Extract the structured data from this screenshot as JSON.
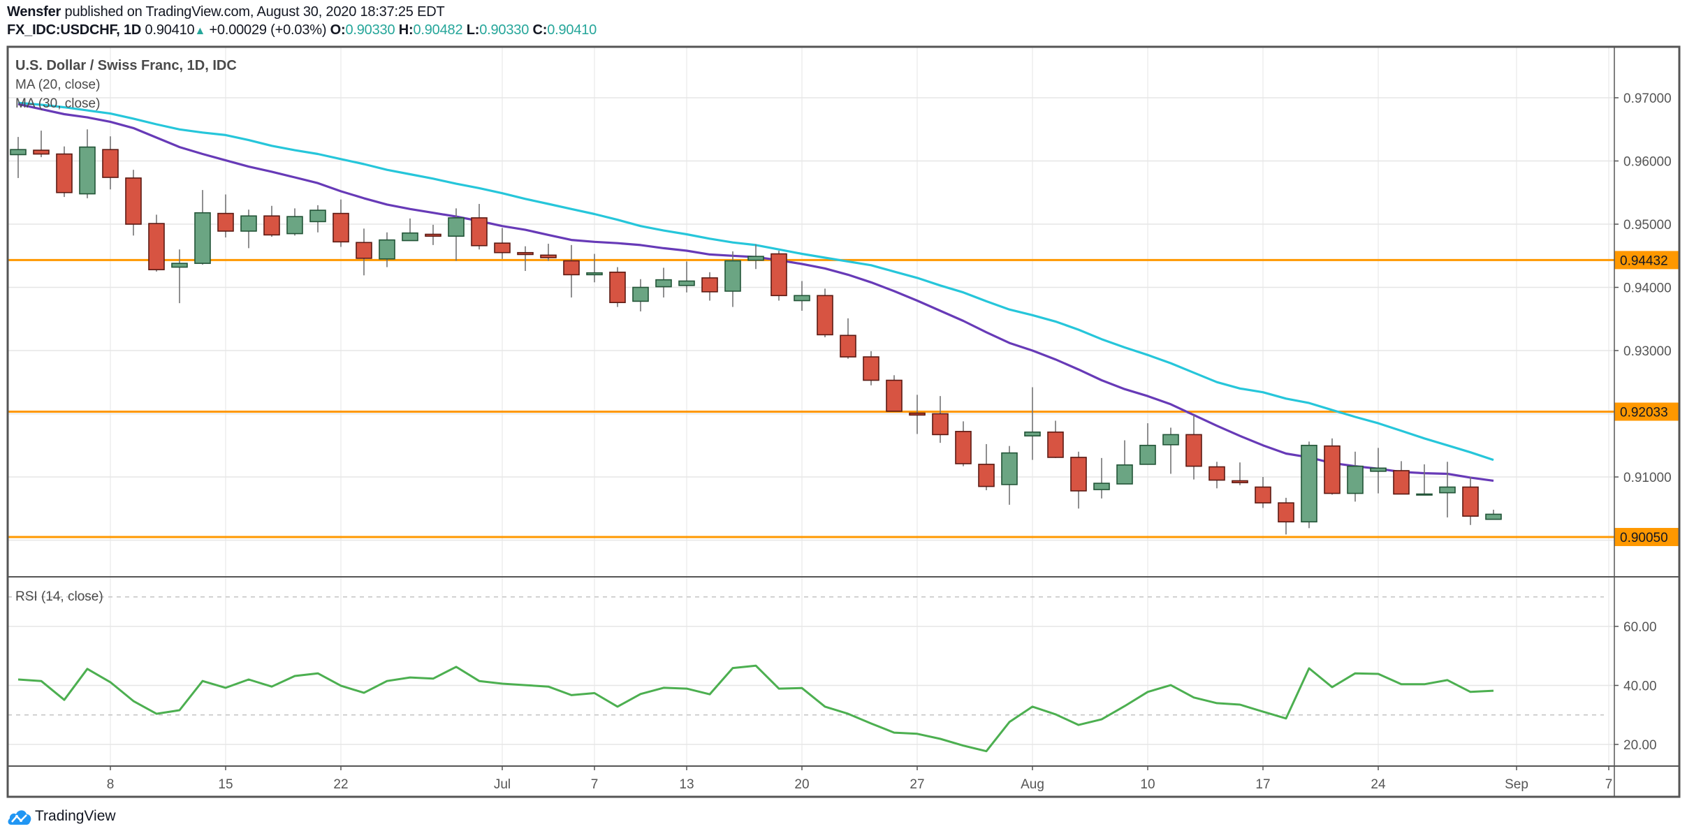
{
  "header": {
    "author": "Wensfer",
    "published_text": "published on TradingView.com, August 30, 2020 18:37:25 EDT",
    "symbol": "FX_IDC:USDCHF, 1D",
    "last_price": "0.90410",
    "change_direction_icon": "triangle-up-icon",
    "change": "+0.00029 (+0.03%)",
    "ohlc": [
      {
        "label": "O:",
        "value": "0.90330"
      },
      {
        "label": "H:",
        "value": "0.90482"
      },
      {
        "label": "L:",
        "value": "0.90330"
      },
      {
        "label": "C:",
        "value": "0.90410"
      }
    ]
  },
  "legend": {
    "title": "U.S. Dollar / Swiss Franc, 1D, IDC",
    "ma20": "MA (20, close)",
    "ma30": "MA (30, close)",
    "rsi": "RSI (14, close)"
  },
  "colors": {
    "candle_up": "#6ba583",
    "candle_up_border": "#225437",
    "candle_down": "#d75442",
    "candle_down_border": "#5b1a13",
    "wick": "#737375",
    "ma20": "#673ab7",
    "ma30": "#26c6da",
    "level_line": "#ff9800",
    "rsi": "#4caf50",
    "teal_text": "#26a69a"
  },
  "branding": {
    "logo_text": "TradingView",
    "logo_icon": "tradingview-cloud-icon"
  },
  "chart_data": [
    {
      "type": "candlestick",
      "title": "U.S. Dollar / Swiss Franc, 1D, IDC",
      "price_ylim": [
        0.8968,
        0.9781
      ],
      "yticks": [
        "0.90000",
        "0.91000",
        "0.92000",
        "0.93000",
        "0.94000",
        "0.95000",
        "0.96000",
        "0.97000"
      ],
      "ytick_values": [
        0.9,
        0.91,
        0.92,
        0.93,
        0.94,
        0.95,
        0.96,
        0.97
      ],
      "visible_yticks": [
        "0.91000",
        "0.93000",
        "0.94000",
        "0.95000",
        "0.96000",
        "0.97000"
      ],
      "x_tick_labels": [
        {
          "label": "8",
          "bar": 5
        },
        {
          "label": "15",
          "bar": 10
        },
        {
          "label": "22",
          "bar": 15
        },
        {
          "label": "Jul",
          "bar": 22
        },
        {
          "label": "7",
          "bar": 26
        },
        {
          "label": "13",
          "bar": 30
        },
        {
          "label": "20",
          "bar": 35
        },
        {
          "label": "27",
          "bar": 40
        },
        {
          "label": "Aug",
          "bar": 45
        },
        {
          "label": "10",
          "bar": 50
        },
        {
          "label": "17",
          "bar": 55
        },
        {
          "label": "24",
          "bar": 60
        },
        {
          "label": "Sep",
          "bar": 66
        },
        {
          "label": "7",
          "bar": 70
        }
      ],
      "date_range": [
        "2020-06-02",
        "2020-08-31"
      ],
      "horizontal_levels": [
        {
          "value": 0.94432,
          "label": "0.94432"
        },
        {
          "value": 0.92033,
          "label": "0.92033"
        },
        {
          "value": 0.9005,
          "label": "0.90050"
        }
      ],
      "ohlc": [
        [
          0.961,
          0.9638,
          0.9573,
          0.9618
        ],
        [
          0.9617,
          0.9648,
          0.9606,
          0.9611
        ],
        [
          0.9611,
          0.9623,
          0.9543,
          0.955
        ],
        [
          0.9548,
          0.965,
          0.9541,
          0.9622
        ],
        [
          0.9618,
          0.9639,
          0.9555,
          0.9574
        ],
        [
          0.9573,
          0.9586,
          0.9482,
          0.95
        ],
        [
          0.9501,
          0.9515,
          0.9425,
          0.9428
        ],
        [
          0.9432,
          0.946,
          0.9375,
          0.9438
        ],
        [
          0.9438,
          0.9554,
          0.9436,
          0.9518
        ],
        [
          0.9517,
          0.9547,
          0.9479,
          0.9489
        ],
        [
          0.9489,
          0.9523,
          0.9462,
          0.9513
        ],
        [
          0.9513,
          0.9529,
          0.948,
          0.9483
        ],
        [
          0.9485,
          0.9525,
          0.9482,
          0.9512
        ],
        [
          0.9504,
          0.953,
          0.9487,
          0.9522
        ],
        [
          0.9517,
          0.9539,
          0.9464,
          0.9472
        ],
        [
          0.9471,
          0.9493,
          0.9419,
          0.9446
        ],
        [
          0.9445,
          0.9487,
          0.9432,
          0.9475
        ],
        [
          0.9474,
          0.9509,
          0.9474,
          0.9486
        ],
        [
          0.9484,
          0.9499,
          0.9467,
          0.9481
        ],
        [
          0.9481,
          0.9525,
          0.9442,
          0.951
        ],
        [
          0.951,
          0.9532,
          0.946,
          0.9466
        ],
        [
          0.947,
          0.9494,
          0.9445,
          0.9455
        ],
        [
          0.9455,
          0.9465,
          0.9426,
          0.9452
        ],
        [
          0.9451,
          0.9469,
          0.9442,
          0.9447
        ],
        [
          0.9442,
          0.9467,
          0.9384,
          0.942
        ],
        [
          0.942,
          0.9453,
          0.9408,
          0.9423
        ],
        [
          0.9424,
          0.9432,
          0.9369,
          0.9376
        ],
        [
          0.9378,
          0.9413,
          0.9362,
          0.94
        ],
        [
          0.9401,
          0.9431,
          0.9384,
          0.9412
        ],
        [
          0.9403,
          0.9441,
          0.9392,
          0.941
        ],
        [
          0.9415,
          0.9424,
          0.9379,
          0.9393
        ],
        [
          0.9394,
          0.9457,
          0.9369,
          0.9442
        ],
        [
          0.9443,
          0.9468,
          0.9429,
          0.9449
        ],
        [
          0.9453,
          0.9458,
          0.9379,
          0.9387
        ],
        [
          0.9379,
          0.941,
          0.9363,
          0.9387
        ],
        [
          0.9387,
          0.9398,
          0.9321,
          0.9325
        ],
        [
          0.9324,
          0.9351,
          0.9287,
          0.929
        ],
        [
          0.929,
          0.9299,
          0.9245,
          0.9253
        ],
        [
          0.9253,
          0.9261,
          0.9204,
          0.9204
        ],
        [
          0.9201,
          0.923,
          0.9168,
          0.9198
        ],
        [
          0.92,
          0.9228,
          0.9154,
          0.9167
        ],
        [
          0.9172,
          0.9188,
          0.9117,
          0.9121
        ],
        [
          0.912,
          0.9152,
          0.9079,
          0.9085
        ],
        [
          0.9088,
          0.9149,
          0.9056,
          0.9138
        ],
        [
          0.9165,
          0.9242,
          0.9127,
          0.9171
        ],
        [
          0.9171,
          0.9189,
          0.913,
          0.9131
        ],
        [
          0.9131,
          0.914,
          0.905,
          0.9078
        ],
        [
          0.908,
          0.913,
          0.9066,
          0.909
        ],
        [
          0.9089,
          0.9158,
          0.9089,
          0.9119
        ],
        [
          0.912,
          0.9185,
          0.912,
          0.915
        ],
        [
          0.9151,
          0.9178,
          0.9105,
          0.9167
        ],
        [
          0.9167,
          0.9198,
          0.9096,
          0.9117
        ],
        [
          0.9116,
          0.9124,
          0.9082,
          0.9095
        ],
        [
          0.9094,
          0.9123,
          0.9087,
          0.9091
        ],
        [
          0.9084,
          0.91,
          0.9051,
          0.9059
        ],
        [
          0.9059,
          0.9067,
          0.9009,
          0.9029
        ],
        [
          0.9029,
          0.9156,
          0.9019,
          0.915
        ],
        [
          0.9149,
          0.9161,
          0.9072,
          0.9074
        ],
        [
          0.9074,
          0.914,
          0.9061,
          0.9117
        ],
        [
          0.9109,
          0.9146,
          0.9074,
          0.9114
        ],
        [
          0.911,
          0.9125,
          0.9073,
          0.9073
        ],
        [
          0.9073,
          0.912,
          0.9073,
          0.9073
        ],
        [
          0.9075,
          0.9124,
          0.9036,
          0.9084
        ],
        [
          0.9084,
          0.91,
          0.9024,
          0.9038
        ],
        [
          0.9033,
          0.90482,
          0.9033,
          0.9041
        ]
      ],
      "series": [
        {
          "name": "MA (20, close)",
          "values": [
            0.969,
            0.9682,
            0.9674,
            0.9669,
            0.9662,
            0.9652,
            0.9637,
            0.9622,
            0.9611,
            0.9601,
            0.9591,
            0.9583,
            0.9574,
            0.9565,
            0.9552,
            0.9541,
            0.9531,
            0.9524,
            0.9518,
            0.9512,
            0.9505,
            0.9497,
            0.9491,
            0.9483,
            0.9475,
            0.9472,
            0.947,
            0.9467,
            0.9462,
            0.9458,
            0.9452,
            0.945,
            0.9448,
            0.9443,
            0.9437,
            0.943,
            0.942,
            0.9408,
            0.9394,
            0.9379,
            0.9363,
            0.9347,
            0.9329,
            0.9312,
            0.93,
            0.9286,
            0.927,
            0.9253,
            0.9239,
            0.9228,
            0.9215,
            0.9198,
            0.9181,
            0.9165,
            0.915,
            0.9137,
            0.9131,
            0.9122,
            0.9117,
            0.9113,
            0.9108,
            0.9106,
            0.9105,
            0.9099,
            0.9094
          ]
        },
        {
          "name": "MA (30, close)",
          "values": [
            0.9692,
            0.9689,
            0.9685,
            0.968,
            0.9675,
            0.9667,
            0.9658,
            0.965,
            0.9645,
            0.9641,
            0.9633,
            0.9624,
            0.9617,
            0.9611,
            0.9603,
            0.9595,
            0.9586,
            0.9579,
            0.9572,
            0.9564,
            0.9557,
            0.9549,
            0.954,
            0.9532,
            0.9524,
            0.9516,
            0.9507,
            0.9497,
            0.949,
            0.9484,
            0.9477,
            0.9471,
            0.9467,
            0.946,
            0.9453,
            0.9447,
            0.9441,
            0.9435,
            0.9425,
            0.9415,
            0.9403,
            0.9392,
            0.9378,
            0.9365,
            0.9356,
            0.9346,
            0.9333,
            0.9318,
            0.9305,
            0.9293,
            0.928,
            0.9265,
            0.925,
            0.924,
            0.9234,
            0.9224,
            0.9217,
            0.9206,
            0.9195,
            0.9185,
            0.9173,
            0.9161,
            0.915,
            0.9139,
            0.9127
          ]
        }
      ]
    },
    {
      "type": "line",
      "title": "RSI (14, close)",
      "ylim": [
        10,
        77
      ],
      "yticks": [
        "20.00",
        "40.00",
        "60.00"
      ],
      "ytick_values": [
        20,
        40,
        60
      ],
      "bands": [
        30,
        70
      ],
      "series": [
        {
          "name": "RSI (14, close)",
          "values": [
            42.0,
            41.5,
            35.1,
            45.6,
            41.1,
            34.7,
            30.4,
            31.6,
            41.5,
            39.2,
            42.0,
            39.6,
            43.2,
            44.1,
            39.9,
            37.5,
            41.5,
            42.7,
            42.3,
            46.3,
            41.5,
            40.6,
            40.1,
            39.6,
            36.7,
            37.4,
            32.8,
            37.1,
            39.2,
            38.9,
            37.0,
            45.9,
            46.7,
            38.9,
            39.1,
            32.8,
            30.4,
            27.1,
            24.0,
            23.6,
            21.9,
            19.6,
            17.7,
            27.6,
            32.8,
            30.2,
            26.6,
            28.5,
            33.0,
            37.8,
            40.1,
            35.9,
            34.0,
            33.5,
            31.1,
            28.8,
            45.8,
            39.4,
            44.1,
            43.9,
            40.4,
            40.4,
            41.8,
            37.8,
            38.2
          ]
        }
      ]
    }
  ]
}
